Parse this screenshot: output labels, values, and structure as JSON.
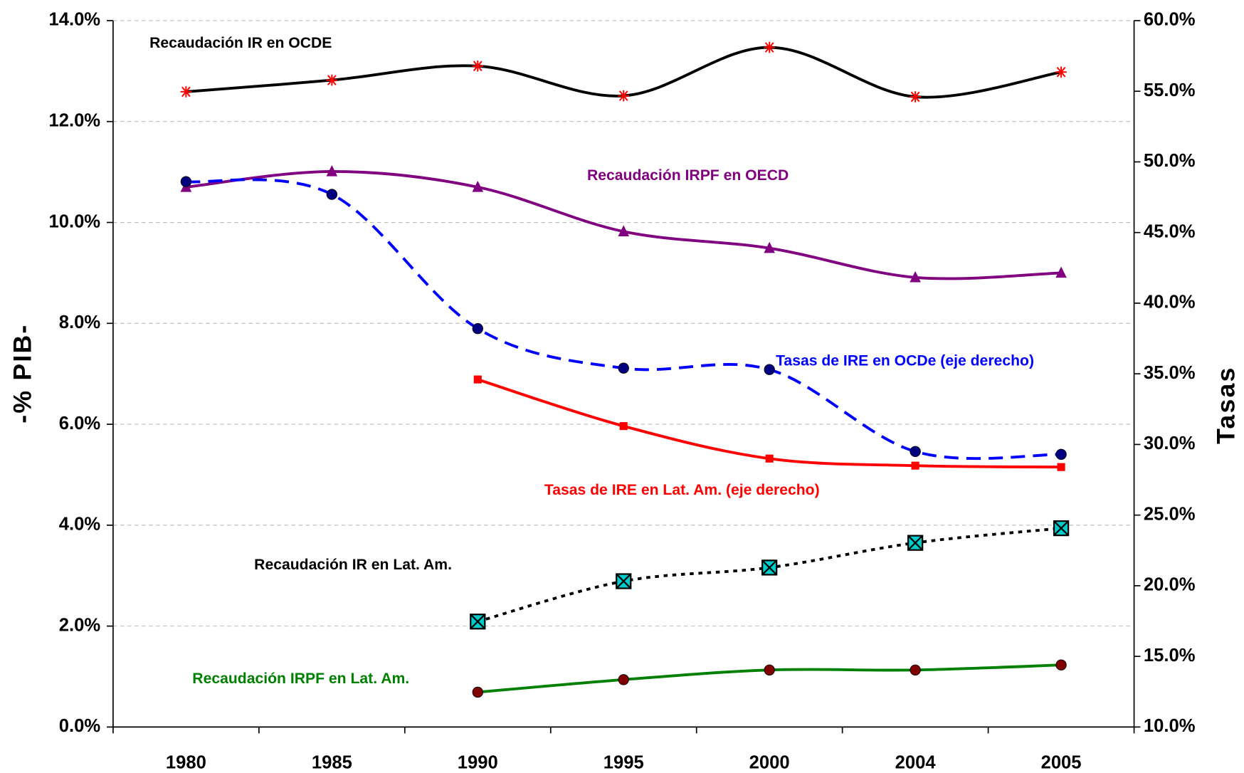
{
  "chart_data": {
    "type": "line",
    "categories": [
      "1980",
      "1985",
      "1990",
      "1995",
      "2000",
      "2004",
      "2005"
    ],
    "ylabel": "-% PIB-",
    "y2label": "Tasas",
    "ylim": [
      0,
      14
    ],
    "yticks": [
      {
        "value": 0,
        "label": "0.0%"
      },
      {
        "value": 2,
        "label": "2.0%"
      },
      {
        "value": 4,
        "label": "4.0%"
      },
      {
        "value": 6,
        "label": "6.0%"
      },
      {
        "value": 8,
        "label": "8.0%"
      },
      {
        "value": 10,
        "label": "10.0%"
      },
      {
        "value": 12,
        "label": "12.0%"
      },
      {
        "value": 14,
        "label": "14.0%"
      }
    ],
    "y2lim": [
      10,
      60
    ],
    "y2ticks": [
      {
        "value": 10,
        "label": "10.0%"
      },
      {
        "value": 15,
        "label": "15.0%"
      },
      {
        "value": 20,
        "label": "20.0%"
      },
      {
        "value": 25,
        "label": "25.0%"
      },
      {
        "value": 30,
        "label": "30.0%"
      },
      {
        "value": 35,
        "label": "35.0%"
      },
      {
        "value": 40,
        "label": "40.0%"
      },
      {
        "value": 45,
        "label": "45.0%"
      },
      {
        "value": 50,
        "label": "50.0%"
      },
      {
        "value": 55,
        "label": "55.0%"
      },
      {
        "value": 60,
        "label": "60.0%"
      }
    ],
    "grid": true,
    "series": [
      {
        "name": "Recaudación IR en OCDE",
        "color": "#000000",
        "marker": "asterisk",
        "marker_color": "#ff0000",
        "style": "solid",
        "values": [
          12.59,
          12.82,
          13.1,
          12.51,
          13.47,
          12.49,
          12.98
        ]
      },
      {
        "name": "Recaudación IRPF en OECD",
        "color": "#800080",
        "marker": "triangle",
        "marker_color": "#800080",
        "style": "solid",
        "values": [
          10.7,
          11.01,
          10.7,
          9.82,
          9.49,
          8.91,
          9.0
        ]
      },
      {
        "name": "Tasas de IRE en OCDe (eje derecho)",
        "color": "#0000ff",
        "marker": "circle",
        "marker_color": "#000080",
        "style": "dash",
        "axis": "y2",
        "values": [
          48.6,
          47.7,
          38.2,
          35.4,
          35.3,
          29.5,
          29.3
        ]
      },
      {
        "name": "Tasas de IRE en Lat. Am. (eje derecho)",
        "color": "#ff0000",
        "marker": "square",
        "marker_color": "#ff0000",
        "style": "solid",
        "axis": "y2",
        "values": [
          null,
          null,
          34.6,
          31.3,
          29.0,
          28.5,
          28.4
        ]
      },
      {
        "name": "Recaudación IR en Lat. Am.",
        "color": "#000000",
        "marker": "xbox",
        "marker_color": "#00cccc",
        "style": "dot",
        "values": [
          null,
          null,
          2.09,
          2.89,
          3.16,
          3.65,
          3.94
        ]
      },
      {
        "name": "Recaudación IRPF en Lat. Am.",
        "color": "#008000",
        "marker": "circle",
        "marker_color": "#800000",
        "style": "solid",
        "values": [
          null,
          null,
          0.69,
          0.94,
          1.13,
          1.13,
          1.23
        ]
      }
    ]
  }
}
